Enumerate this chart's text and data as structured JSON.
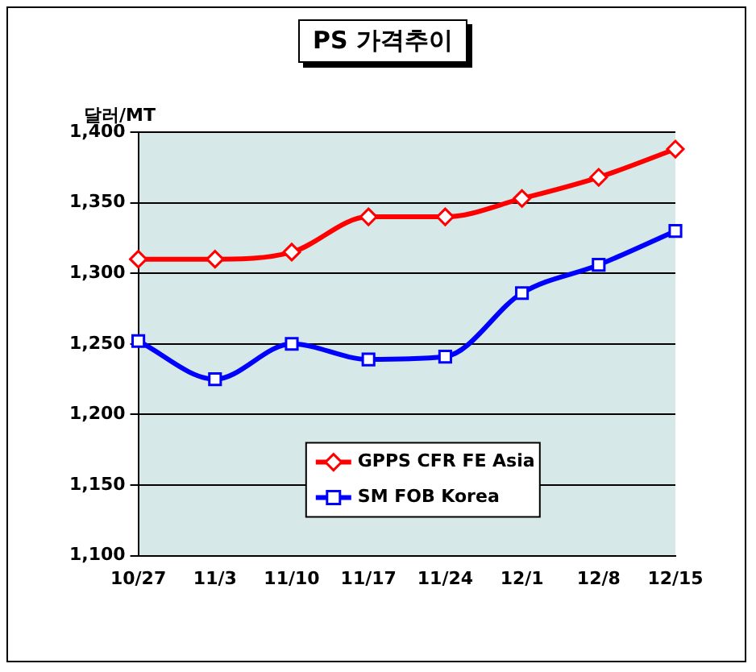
{
  "chart_data": {
    "type": "line",
    "title": "PS 가격추이",
    "ylabel": "달러/MT",
    "categories": [
      "10/27",
      "11/3",
      "11/10",
      "11/17",
      "11/24",
      "12/1",
      "12/8",
      "12/15"
    ],
    "series": [
      {
        "name": "GPPS CFR FE Asia",
        "color": "#ff0000",
        "marker": "diamond",
        "values": [
          1310,
          1310,
          1315,
          1340,
          1340,
          1353,
          1368,
          1388
        ]
      },
      {
        "name": "SM FOB Korea",
        "color": "#0000ff",
        "marker": "square",
        "values": [
          1252,
          1225,
          1250,
          1239,
          1241,
          1286,
          1306,
          1330
        ]
      }
    ],
    "ylim": [
      1100,
      1400
    ],
    "yticks": [
      {
        "value": 1100,
        "label": "1,100"
      },
      {
        "value": 1150,
        "label": "1,150"
      },
      {
        "value": 1200,
        "label": "1,200"
      },
      {
        "value": 1250,
        "label": "1,250"
      },
      {
        "value": 1300,
        "label": "1,300"
      },
      {
        "value": 1350,
        "label": "1,350"
      },
      {
        "value": 1400,
        "label": "1,400"
      }
    ],
    "grid": "y",
    "legend": "bottom",
    "line_style": "solid"
  }
}
